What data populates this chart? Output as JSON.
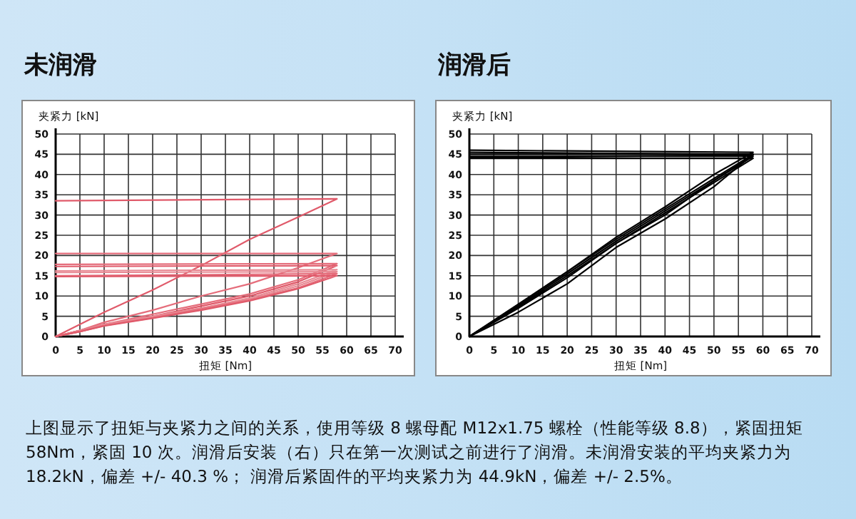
{
  "chart_data": [
    {
      "type": "line",
      "title": "未润滑",
      "xlabel": "扭矩 [Nm]",
      "ylabel": "夹紧力 [kN]",
      "xlim": [
        0,
        70
      ],
      "ylim": [
        0,
        50
      ],
      "xticks": [
        0,
        5,
        10,
        15,
        20,
        25,
        30,
        35,
        40,
        45,
        50,
        55,
        60,
        65,
        70
      ],
      "yticks": [
        0,
        5,
        10,
        15,
        20,
        25,
        30,
        35,
        40,
        45,
        50
      ],
      "grid": true,
      "marker": "none",
      "line_style": "solid",
      "x": [
        0,
        5,
        10,
        20,
        30,
        40,
        50,
        58,
        0
      ],
      "series": [
        {
          "color": "#e05a6a",
          "values": [
            0,
            3,
            6,
            11.5,
            17.5,
            24,
            29.5,
            34,
            33.5
          ]
        },
        {
          "color": "#e56d7b",
          "values": [
            0,
            1.5,
            3.5,
            6.5,
            10,
            13,
            17,
            20.5,
            20.5
          ]
        },
        {
          "color": "#e56d7b",
          "values": [
            0,
            1.5,
            3,
            5.5,
            8,
            10.5,
            14,
            18,
            17.8
          ]
        },
        {
          "color": "#e05a6a",
          "values": [
            0,
            1.5,
            3,
            5,
            7.5,
            10,
            13.5,
            17.5,
            17.3
          ]
        },
        {
          "color": "#e88a94",
          "values": [
            0,
            1.5,
            3,
            5,
            7,
            9.5,
            13,
            16.5,
            16.2
          ]
        },
        {
          "color": "#e88a94",
          "values": [
            0,
            1.2,
            2.8,
            4.8,
            7,
            9.2,
            12.5,
            16,
            15.8
          ]
        },
        {
          "color": "#e56d7b",
          "values": [
            0,
            1.2,
            2.7,
            4.6,
            6.8,
            9,
            12,
            15.5,
            15
          ]
        },
        {
          "color": "#e05a6a",
          "values": [
            0,
            1.2,
            2.6,
            4.5,
            6.5,
            8.8,
            11.8,
            15,
            14.8
          ]
        }
      ],
      "annotations": [
        "上图显示了扭矩与夹紧力之间的关系，使用等级 8 螺母配 M12x1.75 螺栓（性能等级 8.8），紧固扭矩 58Nm，紧固 10 次。润滑后安装（右）只在第一次测试之前进行了润滑。未润滑安装的平均夹紧力为 18.2kN，偏差 +/- 40.3 %； 润滑后紧固件的平均夹紧力为 44.9kN，偏差 +/- 2.5%。"
      ]
    },
    {
      "type": "line",
      "title": "润滑后",
      "xlabel": "扭矩 [Nm]",
      "ylabel": "夹紧力 [kN]",
      "xlim": [
        0,
        70
      ],
      "ylim": [
        0,
        50
      ],
      "xticks": [
        0,
        5,
        10,
        15,
        20,
        25,
        30,
        35,
        40,
        45,
        50,
        55,
        60,
        65,
        70
      ],
      "yticks": [
        0,
        5,
        10,
        15,
        20,
        25,
        30,
        35,
        40,
        45,
        50
      ],
      "grid": true,
      "marker": "none",
      "line_style": "solid",
      "x": [
        0,
        10,
        20,
        30,
        40,
        50,
        58,
        0
      ],
      "series": [
        {
          "color": "#000000",
          "values": [
            0,
            8,
            16,
            24,
            31.5,
            39,
            45,
            45.5
          ]
        },
        {
          "color": "#000000",
          "values": [
            0,
            7.5,
            15.5,
            23.5,
            31,
            38.5,
            44.5,
            44.5
          ]
        },
        {
          "color": "#000000",
          "values": [
            0,
            7,
            14.5,
            23,
            30.5,
            38,
            44,
            44
          ]
        },
        {
          "color": "#000000",
          "values": [
            0,
            6,
            13,
            22,
            29,
            37,
            45,
            45
          ]
        },
        {
          "color": "#000000",
          "values": [
            0,
            7.8,
            16,
            24.5,
            32,
            40,
            45.5,
            46
          ]
        },
        {
          "color": "#000000",
          "values": [
            0,
            7.2,
            15,
            23,
            30,
            38.5,
            44.8,
            44.2
          ]
        }
      ]
    }
  ]
}
